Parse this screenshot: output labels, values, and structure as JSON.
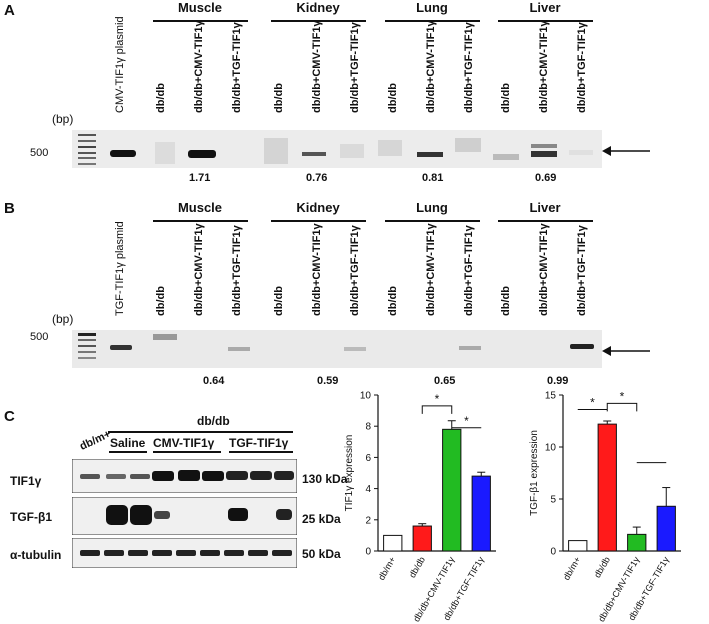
{
  "panel_a": {
    "label": "A",
    "lanes": [
      "CMV-TIF1γ plasmid",
      "db/db",
      "db/db+CMV-TIF1γ",
      "db/db+TGF-TIF1γ",
      "db/db",
      "db/db+CMV-TIF1γ",
      "db/db+TGF-TIF1γ",
      "db/db",
      "db/db+CMV-TIF1γ",
      "db/db+TGF-TIF1γ",
      "db/db",
      "db/db+CMV-TIF1γ",
      "db/db+TGF-TIF1γ"
    ],
    "tissues": [
      "Muscle",
      "Kidney",
      "Lung",
      "Liver"
    ],
    "bp_label": "(bp)",
    "marker": "500",
    "quant": [
      "1.71",
      "0.76",
      "0.81",
      "0.69"
    ]
  },
  "panel_b": {
    "label": "B",
    "lanes": [
      "TGF-TIF1γ plasmid",
      "db/db",
      "db/db+CMV-TIF1γ",
      "db/db+TGF-TIF1γ",
      "db/db",
      "db/db+CMV-TIF1γ",
      "db/db+TGF-TIF1γ",
      "db/db",
      "db/db+CMV-TIF1γ",
      "db/db+TGF-TIF1γ",
      "db/db",
      "db/db+CMV-TIF1γ",
      "db/db+TGF-TIF1γ"
    ],
    "tissues": [
      "Muscle",
      "Kidney",
      "Lung",
      "Liver"
    ],
    "bp_label": "(bp)",
    "marker": "500",
    "quant": [
      "0.64",
      "0.59",
      "0.65",
      "0.99"
    ]
  },
  "panel_c": {
    "label": "C",
    "group_header": "db/db",
    "col_dbm": "db/m+",
    "groups": [
      "Saline",
      "CMV-TIF1γ",
      "TGF-TIF1γ"
    ],
    "rows": [
      "TIF1γ",
      "TGF-β1",
      "α-tubulin"
    ],
    "sizes": [
      "130 kDa",
      "25 kDa",
      "50 kDa"
    ]
  },
  "chart_data": [
    {
      "type": "bar",
      "categories": [
        "db/m+",
        "db/db",
        "db/db+CMV-TIF1γ",
        "db/db+TGF-TIF1γ"
      ],
      "values": [
        1.0,
        1.6,
        7.8,
        4.8
      ],
      "errors": [
        0,
        0.15,
        0.55,
        0.25
      ],
      "colors": [
        "#ffffff",
        "#ff1a1a",
        "#22bb22",
        "#1a1aff"
      ],
      "ylabel": "TIF1γ expression",
      "ylim": [
        0,
        10
      ],
      "yticks": [
        "0",
        "2",
        "4",
        "6",
        "8",
        "10"
      ],
      "annotations": [
        "*",
        "*"
      ]
    },
    {
      "type": "bar",
      "categories": [
        "db/m+",
        "db/db",
        "db/db+CMV-TIF1γ",
        "db/db+TGF-TIF1γ"
      ],
      "values": [
        1.0,
        12.2,
        1.6,
        4.3
      ],
      "errors": [
        0,
        0.3,
        0.7,
        1.8
      ],
      "colors": [
        "#ffffff",
        "#ff1a1a",
        "#22bb22",
        "#1a1aff"
      ],
      "ylabel": "TGF-β1 expression",
      "ylim": [
        0,
        15
      ],
      "yticks": [
        "0",
        "5",
        "10",
        "15"
      ],
      "annotations": [
        "*",
        "*"
      ]
    }
  ]
}
